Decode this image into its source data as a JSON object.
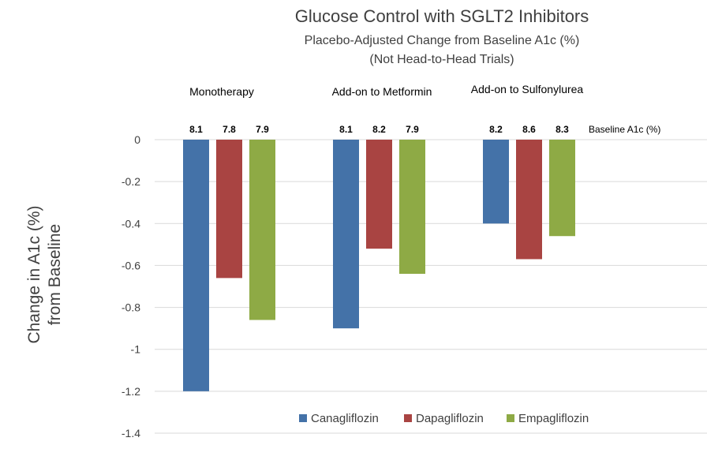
{
  "chart_data": {
    "type": "bar",
    "title": "Glucose Control with SGLT2 Inhibitors",
    "subtitle_lines": [
      "Placebo-Adjusted Change from Baseline A1c (%)",
      "(Not Head-to-Head Trials)"
    ],
    "ylabel_lines": [
      "Change in A1c (%)",
      "from Baseline"
    ],
    "ylim": [
      -1.4,
      0
    ],
    "yticks": [
      0,
      -0.2,
      -0.4,
      -0.6,
      -0.8,
      -1,
      -1.2,
      -1.4
    ],
    "ytick_labels": [
      "0",
      "-0.2",
      "-0.4",
      "-0.6",
      "-0.8",
      "-1",
      "-1.2",
      "-1.4"
    ],
    "grid": true,
    "categories": [
      "Monotherapy",
      "Add-on to Metformin",
      "Add-on to Sulfonylurea"
    ],
    "series": [
      {
        "name": "Canagliflozin",
        "color": "#4472a8",
        "values": [
          -1.2,
          -0.9,
          -0.4
        ],
        "baseline": [
          "8.1",
          "8.1",
          "8.2"
        ]
      },
      {
        "name": "Dapagliflozin",
        "color": "#a94442",
        "values": [
          -0.66,
          -0.52,
          -0.57
        ],
        "baseline": [
          "7.8",
          "8.2",
          "8.6"
        ]
      },
      {
        "name": "Empagliflozin",
        "color": "#8eaa45",
        "values": [
          -0.86,
          -0.64,
          -0.46
        ],
        "baseline": [
          "7.9",
          "7.9",
          "8.3"
        ]
      }
    ],
    "baseline_label": "Baseline A1c (%)",
    "legend_position": "bottom"
  }
}
